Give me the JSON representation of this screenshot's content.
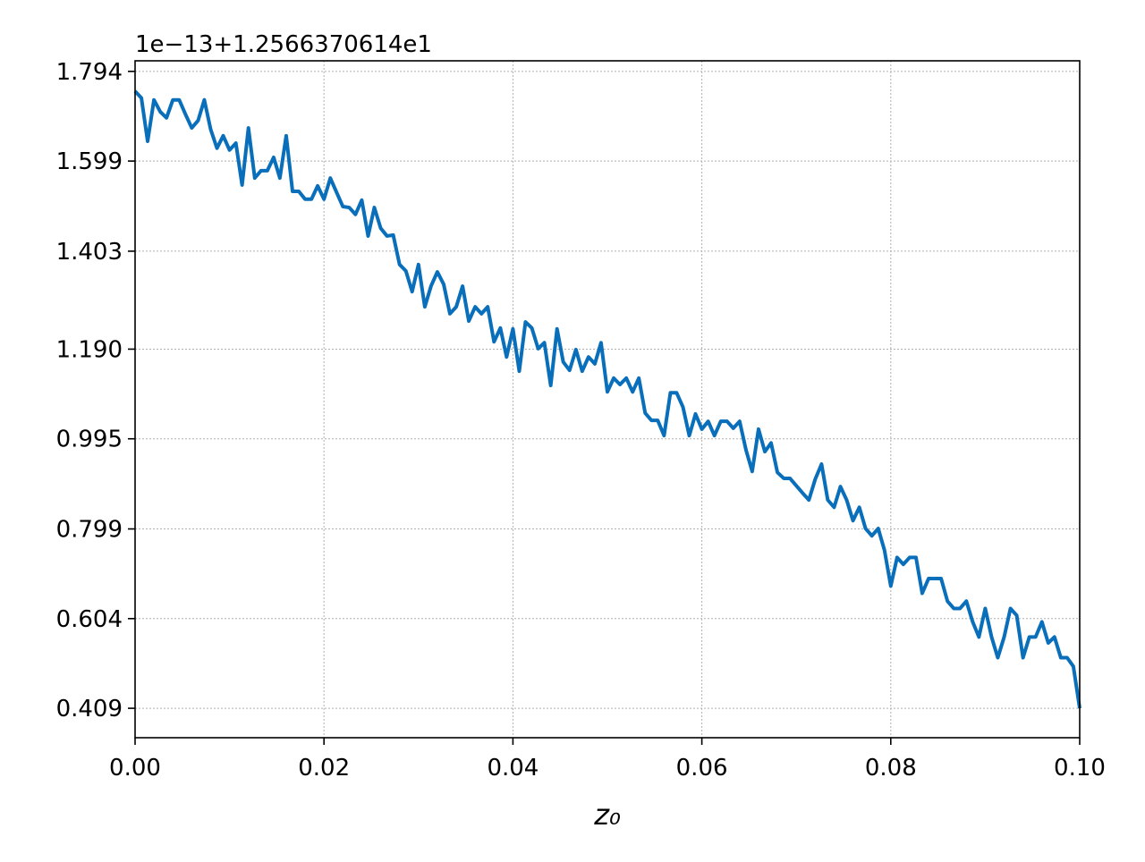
{
  "chart_data": {
    "type": "line",
    "offset_label": "1e−13+1.2566370614e1",
    "x_label": "z₀",
    "x": [
      0,
      0.00067,
      0.00133,
      0.002,
      0.00267,
      0.00333,
      0.004,
      0.00467,
      0.00533,
      0.006,
      0.00667,
      0.00733,
      0.008,
      0.00867,
      0.00933,
      0.01,
      0.01067,
      0.01133,
      0.012,
      0.01267,
      0.01333,
      0.014,
      0.01467,
      0.01533,
      0.016,
      0.01667,
      0.01733,
      0.018,
      0.01867,
      0.01933,
      0.02,
      0.02067,
      0.02133,
      0.022,
      0.02267,
      0.02333,
      0.024,
      0.02467,
      0.02533,
      0.026,
      0.02667,
      0.02733,
      0.028,
      0.02867,
      0.02933,
      0.03,
      0.03067,
      0.03133,
      0.032,
      0.03267,
      0.03333,
      0.034,
      0.03467,
      0.03533,
      0.036,
      0.03667,
      0.03733,
      0.038,
      0.03867,
      0.03933,
      0.04,
      0.04067,
      0.04133,
      0.042,
      0.04267,
      0.04333,
      0.044,
      0.04467,
      0.04533,
      0.046,
      0.04667,
      0.04733,
      0.048,
      0.04867,
      0.04933,
      0.05,
      0.05067,
      0.05133,
      0.052,
      0.05267,
      0.05333,
      0.054,
      0.05467,
      0.05533,
      0.056,
      0.05667,
      0.05733,
      0.058,
      0.05867,
      0.05933,
      0.06,
      0.06067,
      0.06133,
      0.062,
      0.06267,
      0.06333,
      0.064,
      0.06467,
      0.06533,
      0.066,
      0.06667,
      0.06733,
      0.068,
      0.06867,
      0.06933,
      0.07,
      0.07067,
      0.07133,
      0.072,
      0.07267,
      0.07333,
      0.074,
      0.07467,
      0.07533,
      0.076,
      0.07667,
      0.07733,
      0.078,
      0.07867,
      0.07933,
      0.08,
      0.08067,
      0.08133,
      0.082,
      0.08267,
      0.08333,
      0.084,
      0.08467,
      0.08533,
      0.086,
      0.08667,
      0.08733,
      0.088,
      0.08867,
      0.08933,
      0.09,
      0.09067,
      0.09133,
      0.092,
      0.09267,
      0.09333,
      0.094,
      0.09467,
      0.09533,
      0.096,
      0.09667,
      0.09733,
      0.098,
      0.09867,
      0.09933,
      0.1
    ],
    "series": [
      {
        "color": "#0a6fba",
        "values": [
          1.751,
          1.736,
          1.642,
          1.732,
          1.706,
          1.693,
          1.732,
          1.732,
          1.701,
          1.671,
          1.687,
          1.732,
          1.668,
          1.627,
          1.654,
          1.623,
          1.638,
          1.547,
          1.671,
          1.562,
          1.578,
          1.578,
          1.607,
          1.562,
          1.654,
          1.533,
          1.533,
          1.516,
          1.516,
          1.545,
          1.516,
          1.562,
          1.531,
          1.5,
          1.498,
          1.483,
          1.514,
          1.436,
          1.498,
          1.453,
          1.436,
          1.438,
          1.374,
          1.36,
          1.315,
          1.374,
          1.282,
          1.327,
          1.358,
          1.331,
          1.267,
          1.282,
          1.327,
          1.251,
          1.282,
          1.267,
          1.282,
          1.206,
          1.236,
          1.173,
          1.234,
          1.142,
          1.249,
          1.236,
          1.191,
          1.204,
          1.111,
          1.234,
          1.162,
          1.144,
          1.189,
          1.142,
          1.173,
          1.158,
          1.204,
          1.097,
          1.127,
          1.113,
          1.127,
          1.097,
          1.127,
          1.051,
          1.035,
          1.035,
          1.002,
          1.095,
          1.095,
          1.064,
          1.002,
          1.049,
          1.016,
          1.033,
          1.002,
          1.033,
          1.033,
          1.018,
          1.033,
          0.971,
          0.924,
          1.016,
          0.967,
          0.986,
          0.922,
          0.909,
          0.909,
          0.893,
          0.877,
          0.862,
          0.907,
          0.94,
          0.862,
          0.846,
          0.891,
          0.862,
          0.817,
          0.846,
          0.8,
          0.784,
          0.8,
          0.753,
          0.675,
          0.737,
          0.722,
          0.737,
          0.737,
          0.659,
          0.691,
          0.691,
          0.691,
          0.642,
          0.626,
          0.626,
          0.642,
          0.597,
          0.564,
          0.626,
          0.564,
          0.519,
          0.564,
          0.626,
          0.611,
          0.519,
          0.564,
          0.564,
          0.597,
          0.551,
          0.564,
          0.519,
          0.519,
          0.5,
          0.409
        ]
      }
    ],
    "xlim": [
      0,
      0.1
    ],
    "xticks": [
      {
        "value": 0,
        "label": "0.00"
      },
      0.02,
      0.04,
      0.06,
      0.08,
      {
        "value": 0.1,
        "label": "0.10"
      }
    ],
    "ylim": [
      0.345,
      1.817
    ],
    "yticks": [
      1.794,
      1.599,
      1.403,
      {
        "value": 1.19,
        "label": "1.190"
      },
      0.995,
      0.799,
      0.604,
      0.409
    ],
    "grid": true
  }
}
